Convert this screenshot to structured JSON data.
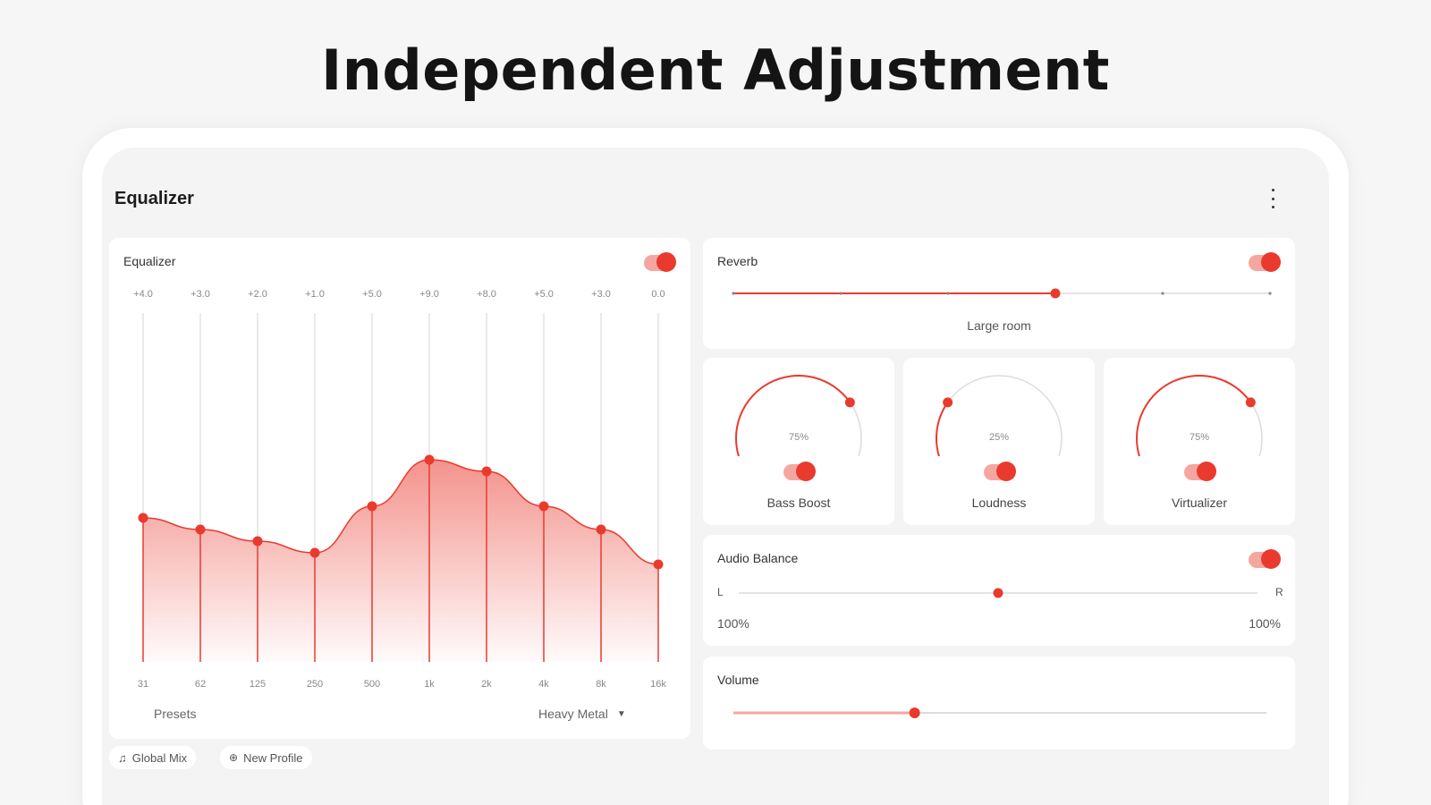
{
  "headline": "Independent Adjustment",
  "app": {
    "title": "Equalizer",
    "menu_icon": "kebab-menu-icon"
  },
  "colors": {
    "accent": "#ea3a2e",
    "accent_light": "#f4a7a0",
    "track": "#dcdcdc",
    "background": "#f4f4f4"
  },
  "equalizer": {
    "title": "Equalizer",
    "enabled": true,
    "bands": [
      {
        "freq": "31",
        "gain_label": "+4.0",
        "level": 4.0
      },
      {
        "freq": "62",
        "gain_label": "+3.0",
        "level": 3.0
      },
      {
        "freq": "125",
        "gain_label": "+2.0",
        "level": 2.0
      },
      {
        "freq": "250",
        "gain_label": "+1.0",
        "level": 1.0
      },
      {
        "freq": "500",
        "gain_label": "+5.0",
        "level": 5.0
      },
      {
        "freq": "1k",
        "gain_label": "+9.0",
        "level": 9.0
      },
      {
        "freq": "2k",
        "gain_label": "+8.0",
        "level": 8.0
      },
      {
        "freq": "4k",
        "gain_label": "+5.0",
        "level": 5.0
      },
      {
        "freq": "8k",
        "gain_label": "+3.0",
        "level": 3.0
      },
      {
        "freq": "16k",
        "gain_label": "0.0",
        "level": 0.0
      }
    ],
    "presets_label": "Presets",
    "preset_value": "Heavy Metal"
  },
  "chips": {
    "global_mix": "Global Mix",
    "new_profile": "New Profile"
  },
  "reverb": {
    "title": "Reverb",
    "enabled": true,
    "value_label": "Large room",
    "step_count": 6,
    "selected_step": 3
  },
  "dials": [
    {
      "label": "Bass Boost",
      "percent_label": "75%",
      "level": 0.75,
      "enabled": true
    },
    {
      "label": "Loudness",
      "percent_label": "25%",
      "level": 0.25,
      "enabled": true
    },
    {
      "label": "Virtualizer",
      "percent_label": "75%",
      "level": 0.75,
      "enabled": true
    }
  ],
  "balance": {
    "title": "Audio Balance",
    "enabled": true,
    "left_label": "L",
    "right_label": "R",
    "left_value": "100%",
    "right_value": "100%",
    "position": 0.5
  },
  "volume": {
    "title": "Volume",
    "level": 0.34
  }
}
